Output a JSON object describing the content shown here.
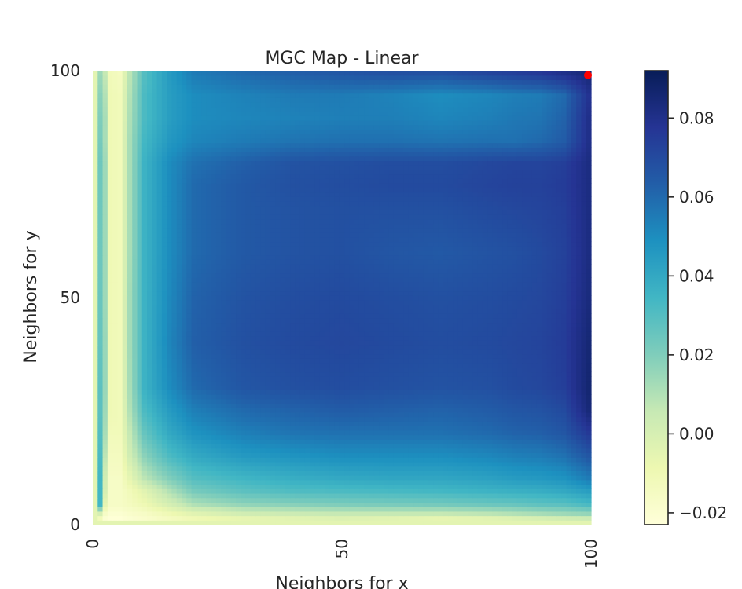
{
  "chart_data": {
    "type": "heatmap",
    "title": "MGC Map - Linear",
    "xlabel": "Neighbors for x",
    "ylabel": "Neighbors for y",
    "xlim": [
      0,
      100
    ],
    "ylim": [
      0,
      100
    ],
    "x_ticks": [
      {
        "value": 0,
        "label": "0"
      },
      {
        "value": 50,
        "label": "50"
      },
      {
        "value": 100,
        "label": "100"
      }
    ],
    "y_ticks": [
      {
        "value": 0,
        "label": "0"
      },
      {
        "value": 50,
        "label": "50"
      },
      {
        "value": 100,
        "label": "100"
      }
    ],
    "colormap": "YlGnBu",
    "colorbar": {
      "min": -0.023,
      "max": 0.092,
      "ticks": [
        {
          "value": 0.08,
          "label": "0.08"
        },
        {
          "value": 0.06,
          "label": "0.06"
        },
        {
          "value": 0.04,
          "label": "0.04"
        },
        {
          "value": 0.02,
          "label": "0.02"
        },
        {
          "value": 0.0,
          "label": "0.00"
        },
        {
          "value": -0.02,
          "label": "−0.02"
        }
      ]
    },
    "optimal_point": {
      "x": 100,
      "y": 99,
      "color": "#ff0000"
    },
    "row_samples_y": [
      100,
      95,
      90,
      85,
      80,
      75,
      70,
      60,
      50,
      40,
      30,
      25,
      20,
      15,
      10,
      7,
      4,
      2,
      1,
      0
    ],
    "col_samples_x": [
      0,
      1,
      2,
      3,
      5,
      7,
      10,
      15,
      20,
      30,
      40,
      50,
      60,
      70,
      80,
      85,
      90,
      95,
      100
    ],
    "values_grid": [
      [
        -0.005,
        0.014,
        0.006,
        -0.012,
        -0.014,
        0.008,
        0.03,
        0.045,
        0.055,
        0.06,
        0.063,
        0.066,
        0.068,
        0.068,
        0.072,
        0.074,
        0.076,
        0.08,
        0.085
      ],
      [
        -0.005,
        0.018,
        0.01,
        -0.01,
        -0.012,
        0.01,
        0.032,
        0.044,
        0.05,
        0.053,
        0.055,
        0.055,
        0.053,
        0.05,
        0.052,
        0.054,
        0.055,
        0.06,
        0.078
      ],
      [
        -0.005,
        0.02,
        0.012,
        -0.01,
        -0.012,
        0.011,
        0.032,
        0.044,
        0.05,
        0.052,
        0.053,
        0.054,
        0.054,
        0.052,
        0.054,
        0.056,
        0.057,
        0.062,
        0.08
      ],
      [
        -0.005,
        0.022,
        0.012,
        -0.01,
        -0.012,
        0.012,
        0.034,
        0.046,
        0.052,
        0.055,
        0.057,
        0.058,
        0.058,
        0.057,
        0.058,
        0.058,
        0.06,
        0.064,
        0.08
      ],
      [
        -0.005,
        0.024,
        0.014,
        -0.01,
        -0.012,
        0.012,
        0.036,
        0.05,
        0.058,
        0.063,
        0.067,
        0.068,
        0.069,
        0.069,
        0.071,
        0.072,
        0.072,
        0.074,
        0.082
      ],
      [
        -0.005,
        0.024,
        0.014,
        -0.01,
        -0.012,
        0.012,
        0.036,
        0.05,
        0.06,
        0.065,
        0.068,
        0.069,
        0.07,
        0.07,
        0.072,
        0.073,
        0.073,
        0.075,
        0.082
      ],
      [
        -0.005,
        0.024,
        0.014,
        -0.01,
        -0.012,
        0.012,
        0.036,
        0.05,
        0.06,
        0.065,
        0.067,
        0.068,
        0.068,
        0.068,
        0.07,
        0.071,
        0.072,
        0.074,
        0.082
      ],
      [
        -0.005,
        0.024,
        0.014,
        -0.01,
        -0.012,
        0.012,
        0.036,
        0.05,
        0.06,
        0.065,
        0.067,
        0.068,
        0.066,
        0.065,
        0.067,
        0.068,
        0.07,
        0.073,
        0.082
      ],
      [
        -0.005,
        0.025,
        0.014,
        -0.01,
        -0.012,
        0.013,
        0.036,
        0.051,
        0.062,
        0.067,
        0.069,
        0.07,
        0.069,
        0.068,
        0.069,
        0.07,
        0.071,
        0.074,
        0.083
      ],
      [
        -0.005,
        0.026,
        0.015,
        -0.01,
        -0.012,
        0.013,
        0.036,
        0.052,
        0.063,
        0.068,
        0.07,
        0.071,
        0.07,
        0.069,
        0.07,
        0.071,
        0.072,
        0.075,
        0.085
      ],
      [
        -0.005,
        0.028,
        0.015,
        -0.01,
        -0.012,
        0.012,
        0.036,
        0.05,
        0.06,
        0.066,
        0.068,
        0.069,
        0.068,
        0.067,
        0.068,
        0.07,
        0.071,
        0.074,
        0.086
      ],
      [
        -0.005,
        0.028,
        0.014,
        -0.01,
        -0.012,
        0.01,
        0.032,
        0.045,
        0.054,
        0.06,
        0.062,
        0.064,
        0.063,
        0.062,
        0.064,
        0.066,
        0.067,
        0.07,
        0.084
      ],
      [
        -0.005,
        0.03,
        0.012,
        -0.012,
        -0.012,
        0.006,
        0.026,
        0.04,
        0.048,
        0.054,
        0.057,
        0.058,
        0.058,
        0.058,
        0.06,
        0.062,
        0.063,
        0.066,
        0.076
      ],
      [
        -0.005,
        0.032,
        0.008,
        -0.014,
        -0.014,
        0.002,
        0.018,
        0.032,
        0.04,
        0.046,
        0.048,
        0.05,
        0.05,
        0.05,
        0.052,
        0.054,
        0.055,
        0.058,
        0.066
      ],
      [
        -0.005,
        0.034,
        0.002,
        -0.016,
        -0.016,
        -0.006,
        0.008,
        0.02,
        0.03,
        0.035,
        0.038,
        0.04,
        0.041,
        0.041,
        0.043,
        0.045,
        0.046,
        0.048,
        0.055
      ],
      [
        -0.005,
        0.034,
        0.0,
        -0.016,
        -0.016,
        -0.012,
        -0.004,
        0.01,
        0.022,
        0.028,
        0.031,
        0.032,
        0.033,
        0.034,
        0.036,
        0.037,
        0.038,
        0.04,
        0.044
      ],
      [
        -0.005,
        0.034,
        -0.006,
        -0.016,
        -0.016,
        -0.014,
        -0.01,
        0.0,
        0.01,
        0.016,
        0.018,
        0.02,
        0.021,
        0.022,
        0.024,
        0.025,
        0.027,
        0.028,
        0.032
      ],
      [
        -0.005,
        0.0,
        -0.016,
        -0.02,
        -0.02,
        -0.018,
        -0.016,
        -0.01,
        -0.004,
        0.002,
        0.004,
        0.006,
        0.006,
        0.006,
        0.008,
        0.01,
        0.012,
        0.014,
        0.016
      ],
      [
        -0.005,
        -0.012,
        -0.02,
        -0.022,
        -0.022,
        -0.02,
        -0.018,
        -0.014,
        -0.01,
        -0.006,
        -0.004,
        -0.002,
        -0.004,
        -0.006,
        -0.004,
        -0.002,
        0.0,
        0.002,
        0.004
      ],
      [
        -0.005,
        -0.005,
        -0.005,
        -0.005,
        -0.005,
        -0.005,
        -0.005,
        -0.005,
        -0.005,
        -0.005,
        -0.005,
        -0.005,
        -0.005,
        -0.005,
        -0.005,
        -0.005,
        -0.005,
        -0.005,
        -0.005
      ]
    ]
  }
}
